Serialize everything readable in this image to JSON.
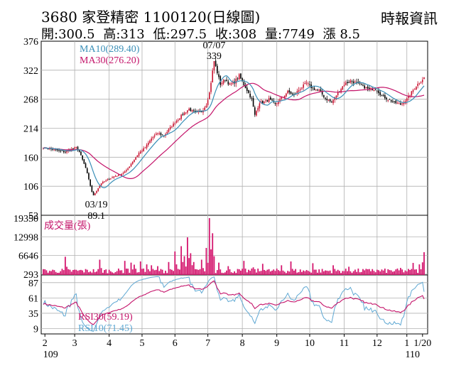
{
  "header": {
    "code": "3680",
    "name": "家登精密",
    "date": "1100120(日線圖)",
    "source": "時報資訊",
    "open": "開:300.5",
    "high": "高:313",
    "low": "低:297.5",
    "close": "收:308",
    "volume": "量:7749",
    "change": "漲 8.5"
  },
  "colors": {
    "up": "#c8102e",
    "down": "#000000",
    "ma10": "#3a8fb7",
    "ma30": "#c4146a",
    "volume": "#d4166e",
    "rsi30": "#c4146a",
    "rsi10": "#5fa8d3",
    "grid": "#b0b0b0"
  },
  "chart_data": [
    {
      "type": "candlestick",
      "title": "3680 家登精密 1100120(日線圖)",
      "ylim": [
        52,
        376
      ],
      "yticks": [
        376,
        322,
        268,
        214,
        160,
        106,
        52
      ],
      "months": [
        {
          "label": "2",
          "sub": "109"
        },
        {
          "label": "3",
          "sub": ""
        },
        {
          "label": "4",
          "sub": ""
        },
        {
          "label": "5",
          "sub": ""
        },
        {
          "label": "6",
          "sub": ""
        },
        {
          "label": "7",
          "sub": ""
        },
        {
          "label": "8",
          "sub": ""
        },
        {
          "label": "9",
          "sub": ""
        },
        {
          "label": "10",
          "sub": ""
        },
        {
          "label": "11",
          "sub": ""
        },
        {
          "label": "12",
          "sub": ""
        },
        {
          "label": "1",
          "sub": "110"
        },
        {
          "label": "1/20",
          "sub": ""
        }
      ],
      "close_path": [
        [
          0,
          178
        ],
        [
          5,
          175
        ],
        [
          10,
          172
        ],
        [
          14,
          170
        ],
        [
          18,
          175
        ],
        [
          21,
          178
        ],
        [
          23,
          170
        ],
        [
          25,
          155
        ],
        [
          27,
          140
        ],
        [
          29,
          118
        ],
        [
          31,
          96
        ],
        [
          32,
          89.1
        ],
        [
          34,
          98
        ],
        [
          37,
          112
        ],
        [
          41,
          118
        ],
        [
          45,
          124
        ],
        [
          49,
          128
        ],
        [
          53,
          135
        ],
        [
          57,
          152
        ],
        [
          61,
          168
        ],
        [
          65,
          178
        ],
        [
          69,
          195
        ],
        [
          73,
          205
        ],
        [
          77,
          200
        ],
        [
          81,
          215
        ],
        [
          85,
          228
        ],
        [
          89,
          240
        ],
        [
          93,
          250
        ],
        [
          97,
          242
        ],
        [
          101,
          245
        ],
        [
          104,
          258
        ],
        [
          106,
          280
        ],
        [
          108,
          320
        ],
        [
          109,
          339
        ],
        [
          111,
          318
        ],
        [
          113,
          296
        ],
        [
          116,
          305
        ],
        [
          119,
          295
        ],
        [
          122,
          300
        ],
        [
          125,
          312
        ],
        [
          128,
          295
        ],
        [
          130,
          285
        ],
        [
          133,
          268
        ],
        [
          135,
          238
        ],
        [
          138,
          262
        ],
        [
          141,
          262
        ],
        [
          144,
          268
        ],
        [
          148,
          258
        ],
        [
          152,
          270
        ],
        [
          156,
          282
        ],
        [
          160,
          276
        ],
        [
          164,
          288
        ],
        [
          168,
          298
        ],
        [
          172,
          288
        ],
        [
          176,
          284
        ],
        [
          180,
          270
        ],
        [
          184,
          262
        ],
        [
          188,
          280
        ],
        [
          192,
          296
        ],
        [
          196,
          302
        ],
        [
          200,
          298
        ],
        [
          204,
          292
        ],
        [
          208,
          286
        ],
        [
          212,
          288
        ],
        [
          216,
          275
        ],
        [
          220,
          268
        ],
        [
          224,
          262
        ],
        [
          228,
          258
        ],
        [
          232,
          268
        ],
        [
          236,
          285
        ],
        [
          240,
          300
        ],
        [
          243,
          308
        ]
      ],
      "extremes": [
        {
          "index": 32,
          "value": 89.1,
          "date": "03/19"
        },
        {
          "index": 109,
          "value": 339,
          "date": "07/07"
        }
      ],
      "series": [
        {
          "name": "MA10",
          "label": "MA10(289.40)",
          "latest": 289.4
        },
        {
          "name": "MA30",
          "label": "MA30(276.20)",
          "latest": 276.2
        }
      ]
    },
    {
      "type": "bar",
      "title": "成交量(張)",
      "ylim": [
        0,
        19350
      ],
      "yticks": [
        19350,
        12998,
        6646,
        293
      ],
      "spikes": [
        [
          14,
          6200
        ],
        [
          36,
          5200
        ],
        [
          52,
          4800
        ],
        [
          56,
          4200
        ],
        [
          58,
          3500
        ],
        [
          62,
          4600
        ],
        [
          66,
          3600
        ],
        [
          69,
          3300
        ],
        [
          73,
          3000
        ],
        [
          80,
          4400
        ],
        [
          84,
          8000
        ],
        [
          88,
          9800
        ],
        [
          90,
          6400
        ],
        [
          92,
          12800
        ],
        [
          94,
          7400
        ],
        [
          96,
          4400
        ],
        [
          101,
          5200
        ],
        [
          104,
          9200
        ],
        [
          106,
          19350
        ],
        [
          108,
          14200
        ],
        [
          112,
          4200
        ],
        [
          118,
          3000
        ],
        [
          128,
          4800
        ],
        [
          134,
          2600
        ],
        [
          140,
          3800
        ],
        [
          152,
          3300
        ],
        [
          158,
          4600
        ],
        [
          172,
          4000
        ],
        [
          185,
          3300
        ],
        [
          195,
          2800
        ],
        [
          210,
          2000
        ],
        [
          228,
          2400
        ],
        [
          236,
          4100
        ],
        [
          240,
          3600
        ],
        [
          242,
          4300
        ]
      ],
      "latest": 7749
    },
    {
      "type": "line",
      "title": "RSI",
      "ylim": [
        0,
        100
      ],
      "yticks": [
        87,
        61,
        35,
        9
      ],
      "series": [
        {
          "name": "RSI30",
          "label": "RSI30(59.19)",
          "latest": 59.19
        },
        {
          "name": "RSI10",
          "label": "RSI10(71.45)",
          "latest": 71.45
        }
      ]
    }
  ]
}
